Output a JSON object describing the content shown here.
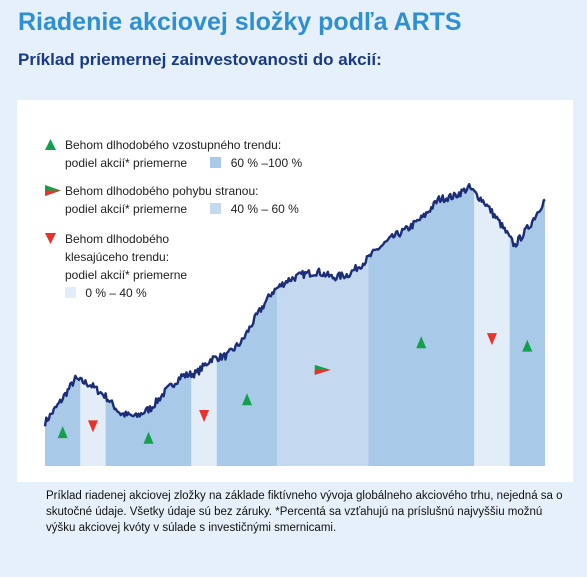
{
  "title": "Riadenie akciovej složky podľa ARTS",
  "subtitle": "Príklad priemernej zainvestovanosti do akcií:",
  "legend": {
    "up": {
      "line1": "Behom dlhodobého vzostupného trendu:",
      "line2": "podiel akcií* priemerne",
      "range": "60 % –100 %"
    },
    "side": {
      "line1": "Behom dlhodobého pohybu stranou:",
      "line2": "podiel akcií* priemerne",
      "range": "40 % – 60 %"
    },
    "down": {
      "line1": "Behom dlhodobého",
      "line2": "klesajúceho trendu:",
      "line3": "podiel akcií* priemerne",
      "range": "0 % – 40 %"
    }
  },
  "footnote": "Príklad riadenej akciovej zložky na základe fiktívneho vývoja globálneho akciového trhu, nejedná sa o skutočné údaje. Všetky údaje sú bez záruky. *Percentá sa vzťahujú na príslušnú najvyššiu možnú výšku akciovej kvóty v súlade s investičnými smernicami.",
  "colors": {
    "title": "#2e8fd3",
    "subtitle": "#1a3a86",
    "up_fill": "#a9c9e8",
    "side_fill": "#c4d9ef",
    "down_fill": "#e3edf8",
    "line": "#1c2e78",
    "up_marker": "#13a04a",
    "down_marker": "#e8322b",
    "side_marker": "#e8322b"
  },
  "chart_data": {
    "type": "area",
    "x": [
      0,
      3,
      6,
      9,
      12,
      15,
      18,
      21,
      24,
      27,
      30,
      33,
      36,
      39,
      42,
      45,
      48,
      51,
      54,
      57,
      60,
      63,
      66,
      69,
      72,
      75,
      78,
      81,
      84,
      87,
      90,
      93,
      96,
      99
    ],
    "y": [
      15,
      22,
      30,
      28,
      24,
      18,
      17,
      20,
      26,
      31,
      32,
      37,
      38,
      43,
      52,
      60,
      64,
      66,
      67,
      65,
      66,
      70,
      75,
      79,
      82,
      86,
      92,
      93,
      96,
      91,
      84,
      76,
      83,
      92
    ],
    "segments": [
      {
        "start": 0,
        "end": 7,
        "trend": "up"
      },
      {
        "start": 7,
        "end": 12,
        "trend": "down"
      },
      {
        "start": 12,
        "end": 29,
        "trend": "up"
      },
      {
        "start": 29,
        "end": 34,
        "trend": "down"
      },
      {
        "start": 34,
        "end": 46,
        "trend": "up"
      },
      {
        "start": 46,
        "end": 64,
        "trend": "side"
      },
      {
        "start": 64,
        "end": 85,
        "trend": "up"
      },
      {
        "start": 85,
        "end": 92,
        "trend": "down"
      },
      {
        "start": 92,
        "end": 100,
        "trend": "up"
      }
    ],
    "xlim": [
      0,
      100
    ],
    "ylim": [
      0,
      100
    ],
    "xlabel": "",
    "ylabel": "",
    "grid": false
  }
}
